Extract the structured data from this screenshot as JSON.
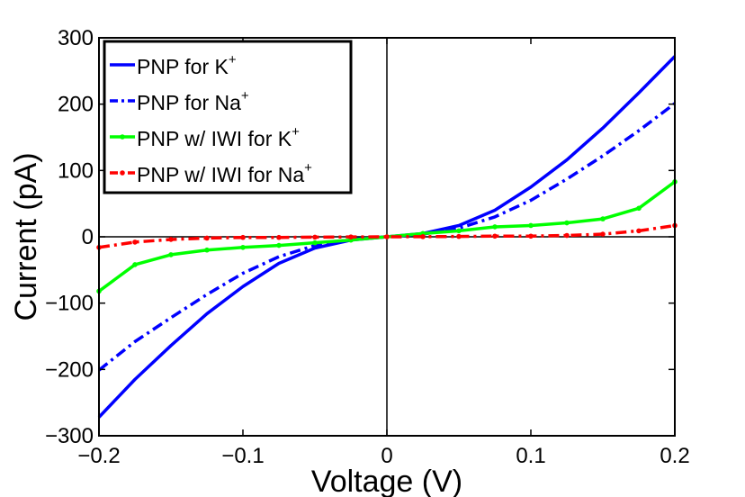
{
  "chart_data": {
    "type": "line",
    "title": "",
    "xlabel": "Voltage (V)",
    "ylabel": "Current (pA)",
    "xlim": [
      -0.2,
      0.2
    ],
    "ylim": [
      -300,
      300
    ],
    "x_ticks": [
      -0.2,
      -0.1,
      0,
      0.1,
      0.2
    ],
    "x_tick_labels": [
      "−0.2",
      "−0.1",
      "0",
      "0.1",
      "0.2"
    ],
    "y_ticks": [
      -300,
      -200,
      -100,
      0,
      100,
      200,
      300
    ],
    "y_tick_labels": [
      "−300",
      "−200",
      "−100",
      "0",
      "100",
      "200",
      "300"
    ],
    "grid": false,
    "legend_position": "top-left",
    "colors": {
      "blue": "#0000ff",
      "green": "#00ff00",
      "red": "#ff0000"
    },
    "series": [
      {
        "name": "PNP for K",
        "name_sup": "+",
        "color": "#0000ff",
        "style": "solid",
        "marker": "none",
        "x": [
          -0.2,
          -0.175,
          -0.15,
          -0.125,
          -0.1,
          -0.075,
          -0.05,
          -0.025,
          0,
          0.025,
          0.05,
          0.075,
          0.1,
          0.125,
          0.15,
          0.175,
          0.2
        ],
        "y": [
          -272,
          -215,
          -164,
          -116,
          -75,
          -40,
          -17,
          -5,
          0,
          5,
          17,
          40,
          75,
          116,
          164,
          217,
          272
        ]
      },
      {
        "name": "PNP for Na",
        "name_sup": "+",
        "color": "#0000ff",
        "style": "dashdot",
        "marker": "none",
        "x": [
          -0.2,
          -0.175,
          -0.15,
          -0.125,
          -0.1,
          -0.075,
          -0.05,
          -0.025,
          0,
          0.025,
          0.05,
          0.075,
          0.1,
          0.125,
          0.15,
          0.175,
          0.2
        ],
        "y": [
          -201,
          -158,
          -122,
          -87,
          -55,
          -30,
          -13,
          -4,
          0,
          4,
          13,
          30,
          55,
          87,
          122,
          160,
          201
        ]
      },
      {
        "name": "PNP w/ IWI for K",
        "name_sup": "+",
        "color": "#00ff00",
        "style": "solid",
        "marker": "dot",
        "x": [
          -0.2,
          -0.175,
          -0.15,
          -0.125,
          -0.1,
          -0.075,
          -0.05,
          -0.025,
          0,
          0.025,
          0.05,
          0.075,
          0.1,
          0.125,
          0.15,
          0.175,
          0.2
        ],
        "y": [
          -82,
          -42,
          -27,
          -20,
          -16,
          -13,
          -9,
          -5,
          0,
          5,
          9,
          15,
          17,
          21,
          27,
          43,
          83
        ]
      },
      {
        "name": "PNP w/ IWI for Na",
        "name_sup": "+",
        "color": "#ff0000",
        "style": "dashdot",
        "marker": "dot",
        "x": [
          -0.2,
          -0.175,
          -0.15,
          -0.125,
          -0.1,
          -0.075,
          -0.05,
          -0.025,
          0,
          0.025,
          0.05,
          0.075,
          0.1,
          0.125,
          0.15,
          0.175,
          0.2
        ],
        "y": [
          -16,
          -8,
          -4,
          -2,
          -1,
          -1,
          -0.5,
          -0.2,
          0,
          0.2,
          0.5,
          1,
          1,
          2,
          4,
          9,
          17
        ]
      }
    ]
  }
}
